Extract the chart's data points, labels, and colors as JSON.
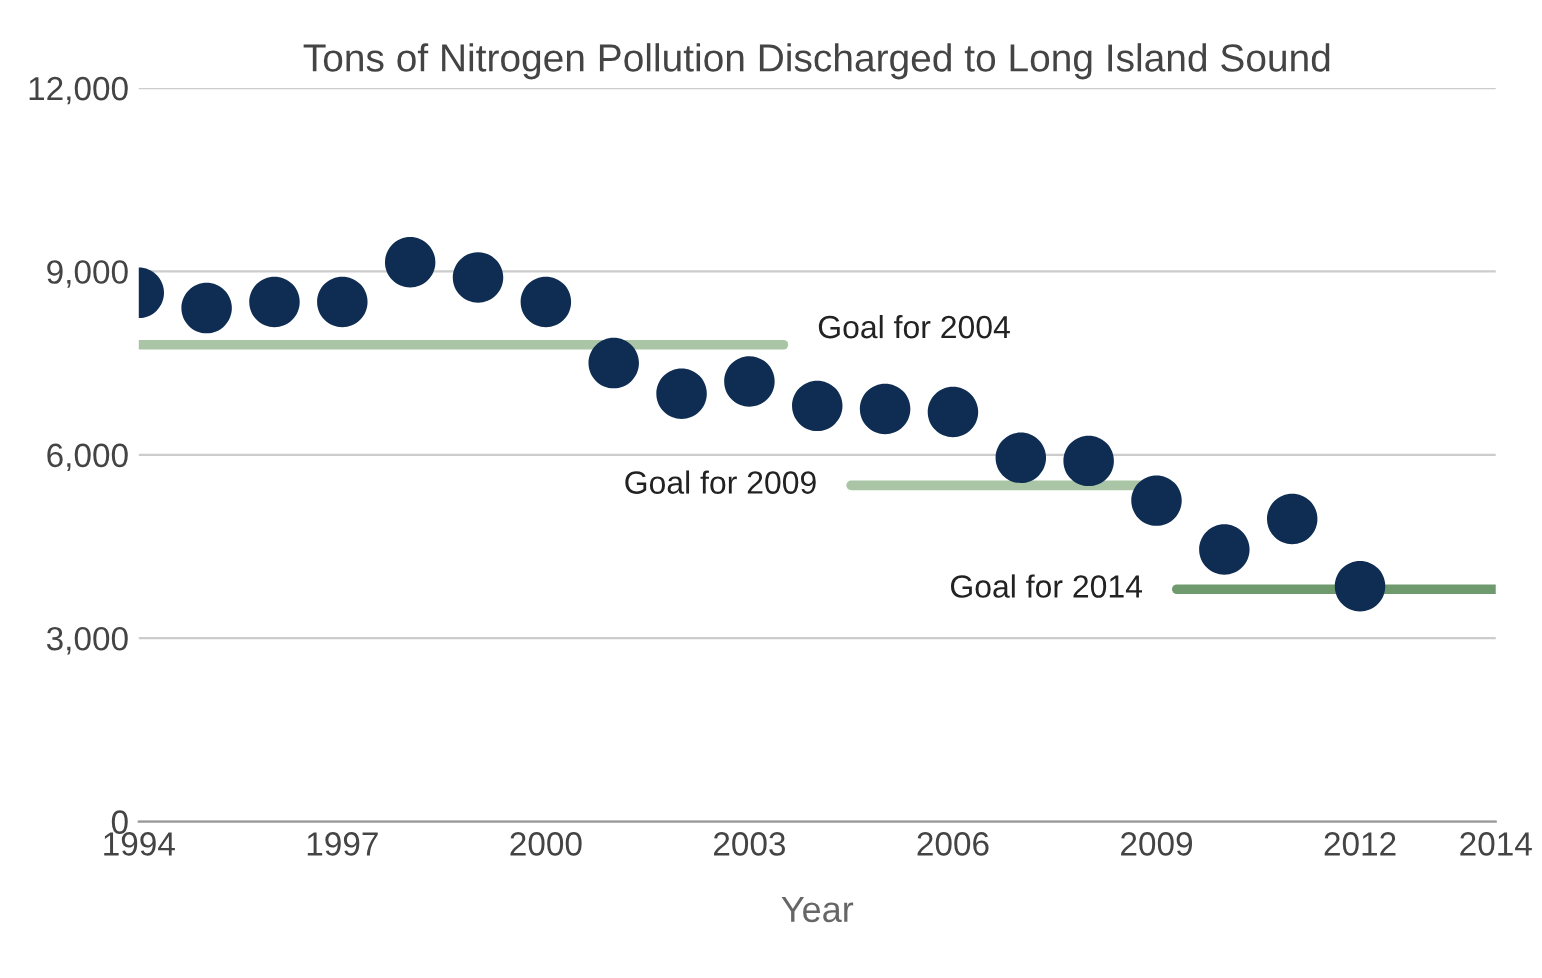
{
  "chart_data": {
    "type": "scatter",
    "title": "Tons of Nitrogen Pollution Discharged to Long Island Sound",
    "xlabel": "Year",
    "xlim": [
      1994,
      2014
    ],
    "xticks": [
      1994,
      1997,
      2000,
      2003,
      2006,
      2009,
      2012,
      2014
    ],
    "ylim": [
      0,
      12000
    ],
    "yticks": [
      {
        "value": 0,
        "label": "0"
      },
      {
        "value": 3000,
        "label": "3,000"
      },
      {
        "value": 6000,
        "label": "6,000"
      },
      {
        "value": 9000,
        "label": "9,000"
      },
      {
        "value": 12000,
        "label": "12,000"
      }
    ],
    "grid": "y",
    "legend": false,
    "series": [
      {
        "marker": "circle",
        "color": "#0f2d52",
        "x": [
          1994,
          1995,
          1996,
          1997,
          1998,
          1999,
          2000,
          2001,
          2002,
          2003,
          2004,
          2005,
          2006,
          2007,
          2008,
          2009,
          2010,
          2011,
          2012
        ],
        "values": [
          8650,
          8400,
          8500,
          8500,
          9150,
          8900,
          8500,
          7500,
          7000,
          7200,
          6800,
          6750,
          6700,
          5950,
          5900,
          5250,
          4450,
          4950,
          3850
        ]
      },
      {
        "type": "line",
        "marker": "none",
        "color": "#a9c5a6",
        "x": [
          1994,
          2003.5
        ],
        "values": [
          7800,
          7800
        ]
      },
      {
        "type": "line",
        "marker": "none",
        "color": "#a9c5a6",
        "x": [
          2004.5,
          2008.8
        ],
        "values": [
          5500,
          5500
        ]
      },
      {
        "type": "line",
        "marker": "none",
        "color": "#6e9a6e",
        "x": [
          2009.3,
          2014
        ],
        "values": [
          3800,
          3800
        ]
      }
    ],
    "annotations": [
      {
        "text": "Goal for 2004",
        "x": 2003.5,
        "y": 7800
      },
      {
        "text": "Goal for 2009",
        "x": 2004.5,
        "y": 5500
      },
      {
        "text": "Goal for 2014",
        "x": 2009.3,
        "y": 3800
      }
    ]
  }
}
